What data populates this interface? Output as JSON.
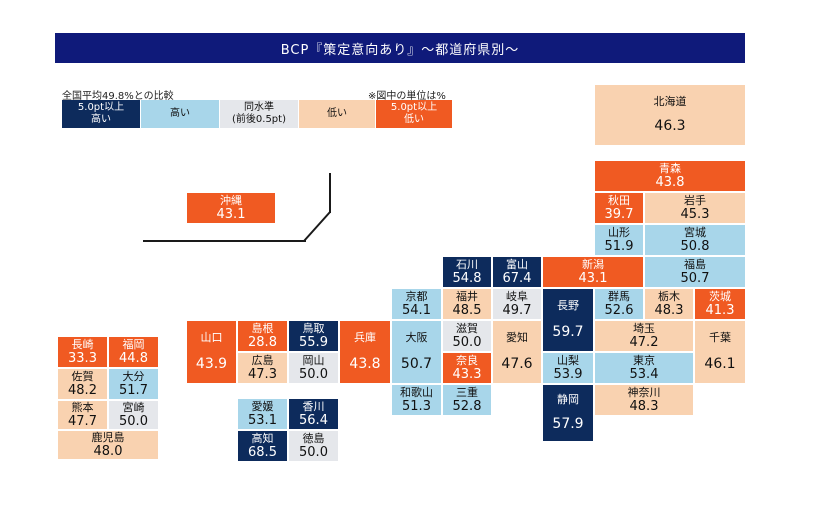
{
  "chart_data": {
    "type": "table",
    "title": "BCP『策定意向あり』〜都道府県別〜",
    "legend": {
      "caption": "全国平均49.8%との比較",
      "unit_note": "※図中の単位は%",
      "categories": [
        {
          "label": "5.0pt以上\n高い",
          "color": "#0d2b5c",
          "text_color": "#ffffff"
        },
        {
          "label": "高い",
          "color": "#a8d6ea",
          "text_color": "#111111"
        },
        {
          "label": "同水準\n(前後0.5pt)",
          "color": "#e5e7eb",
          "text_color": "#111111"
        },
        {
          "label": "低い",
          "color": "#f9d2b0",
          "text_color": "#111111"
        },
        {
          "label": "5.0pt以上\n低い",
          "color": "#f05a22",
          "text_color": "#ffffff"
        }
      ]
    },
    "prefectures": [
      {
        "name": "北海道",
        "value": 46.3,
        "category": 3
      },
      {
        "name": "青森",
        "value": 43.8,
        "category": 4
      },
      {
        "name": "秋田",
        "value": 39.7,
        "category": 4
      },
      {
        "name": "岩手",
        "value": 45.3,
        "category": 3
      },
      {
        "name": "山形",
        "value": 51.9,
        "category": 1
      },
      {
        "name": "宮城",
        "value": 50.8,
        "category": 1
      },
      {
        "name": "福島",
        "value": 50.7,
        "category": 1
      },
      {
        "name": "石川",
        "value": 54.8,
        "category": 0
      },
      {
        "name": "富山",
        "value": 67.4,
        "category": 0
      },
      {
        "name": "新潟",
        "value": 43.1,
        "category": 4
      },
      {
        "name": "京都",
        "value": 54.1,
        "category": 1
      },
      {
        "name": "福井",
        "value": 48.5,
        "category": 3
      },
      {
        "name": "岐阜",
        "value": 49.7,
        "category": 2
      },
      {
        "name": "長野",
        "value": 59.7,
        "category": 0
      },
      {
        "name": "群馬",
        "value": 52.6,
        "category": 1
      },
      {
        "name": "栃木",
        "value": 48.3,
        "category": 3
      },
      {
        "name": "茨城",
        "value": 41.3,
        "category": 4
      },
      {
        "name": "山口",
        "value": 43.9,
        "category": 4
      },
      {
        "name": "島根",
        "value": 28.8,
        "category": 4
      },
      {
        "name": "鳥取",
        "value": 55.9,
        "category": 0
      },
      {
        "name": "兵庫",
        "value": 43.8,
        "category": 4
      },
      {
        "name": "大阪",
        "value": 50.7,
        "category": 1
      },
      {
        "name": "滋賀",
        "value": 50.0,
        "category": 2
      },
      {
        "name": "愛知",
        "value": 47.6,
        "category": 3
      },
      {
        "name": "埼玉",
        "value": 47.2,
        "category": 3
      },
      {
        "name": "千葉",
        "value": 46.1,
        "category": 3
      },
      {
        "name": "広島",
        "value": 47.3,
        "category": 3
      },
      {
        "name": "岡山",
        "value": 50.0,
        "category": 2
      },
      {
        "name": "奈良",
        "value": 43.3,
        "category": 4
      },
      {
        "name": "山梨",
        "value": 53.9,
        "category": 1
      },
      {
        "name": "東京",
        "value": 53.4,
        "category": 1
      },
      {
        "name": "和歌山",
        "value": 51.3,
        "category": 1
      },
      {
        "name": "三重",
        "value": 52.8,
        "category": 1
      },
      {
        "name": "静岡",
        "value": 57.9,
        "category": 0
      },
      {
        "name": "神奈川",
        "value": 48.3,
        "category": 3
      },
      {
        "name": "愛媛",
        "value": 53.1,
        "category": 1
      },
      {
        "name": "香川",
        "value": 56.4,
        "category": 0
      },
      {
        "name": "高知",
        "value": 68.5,
        "category": 0
      },
      {
        "name": "徳島",
        "value": 50.0,
        "category": 2
      },
      {
        "name": "長崎",
        "value": 33.3,
        "category": 4
      },
      {
        "name": "福岡",
        "value": 44.8,
        "category": 4
      },
      {
        "name": "佐賀",
        "value": 48.2,
        "category": 3
      },
      {
        "name": "大分",
        "value": 51.7,
        "category": 1
      },
      {
        "name": "熊本",
        "value": 47.7,
        "category": 3
      },
      {
        "name": "宮崎",
        "value": 50.0,
        "category": 2
      },
      {
        "name": "鹿児島",
        "value": 48.0,
        "category": 3
      },
      {
        "name": "沖縄",
        "value": 43.1,
        "category": 4
      }
    ]
  }
}
